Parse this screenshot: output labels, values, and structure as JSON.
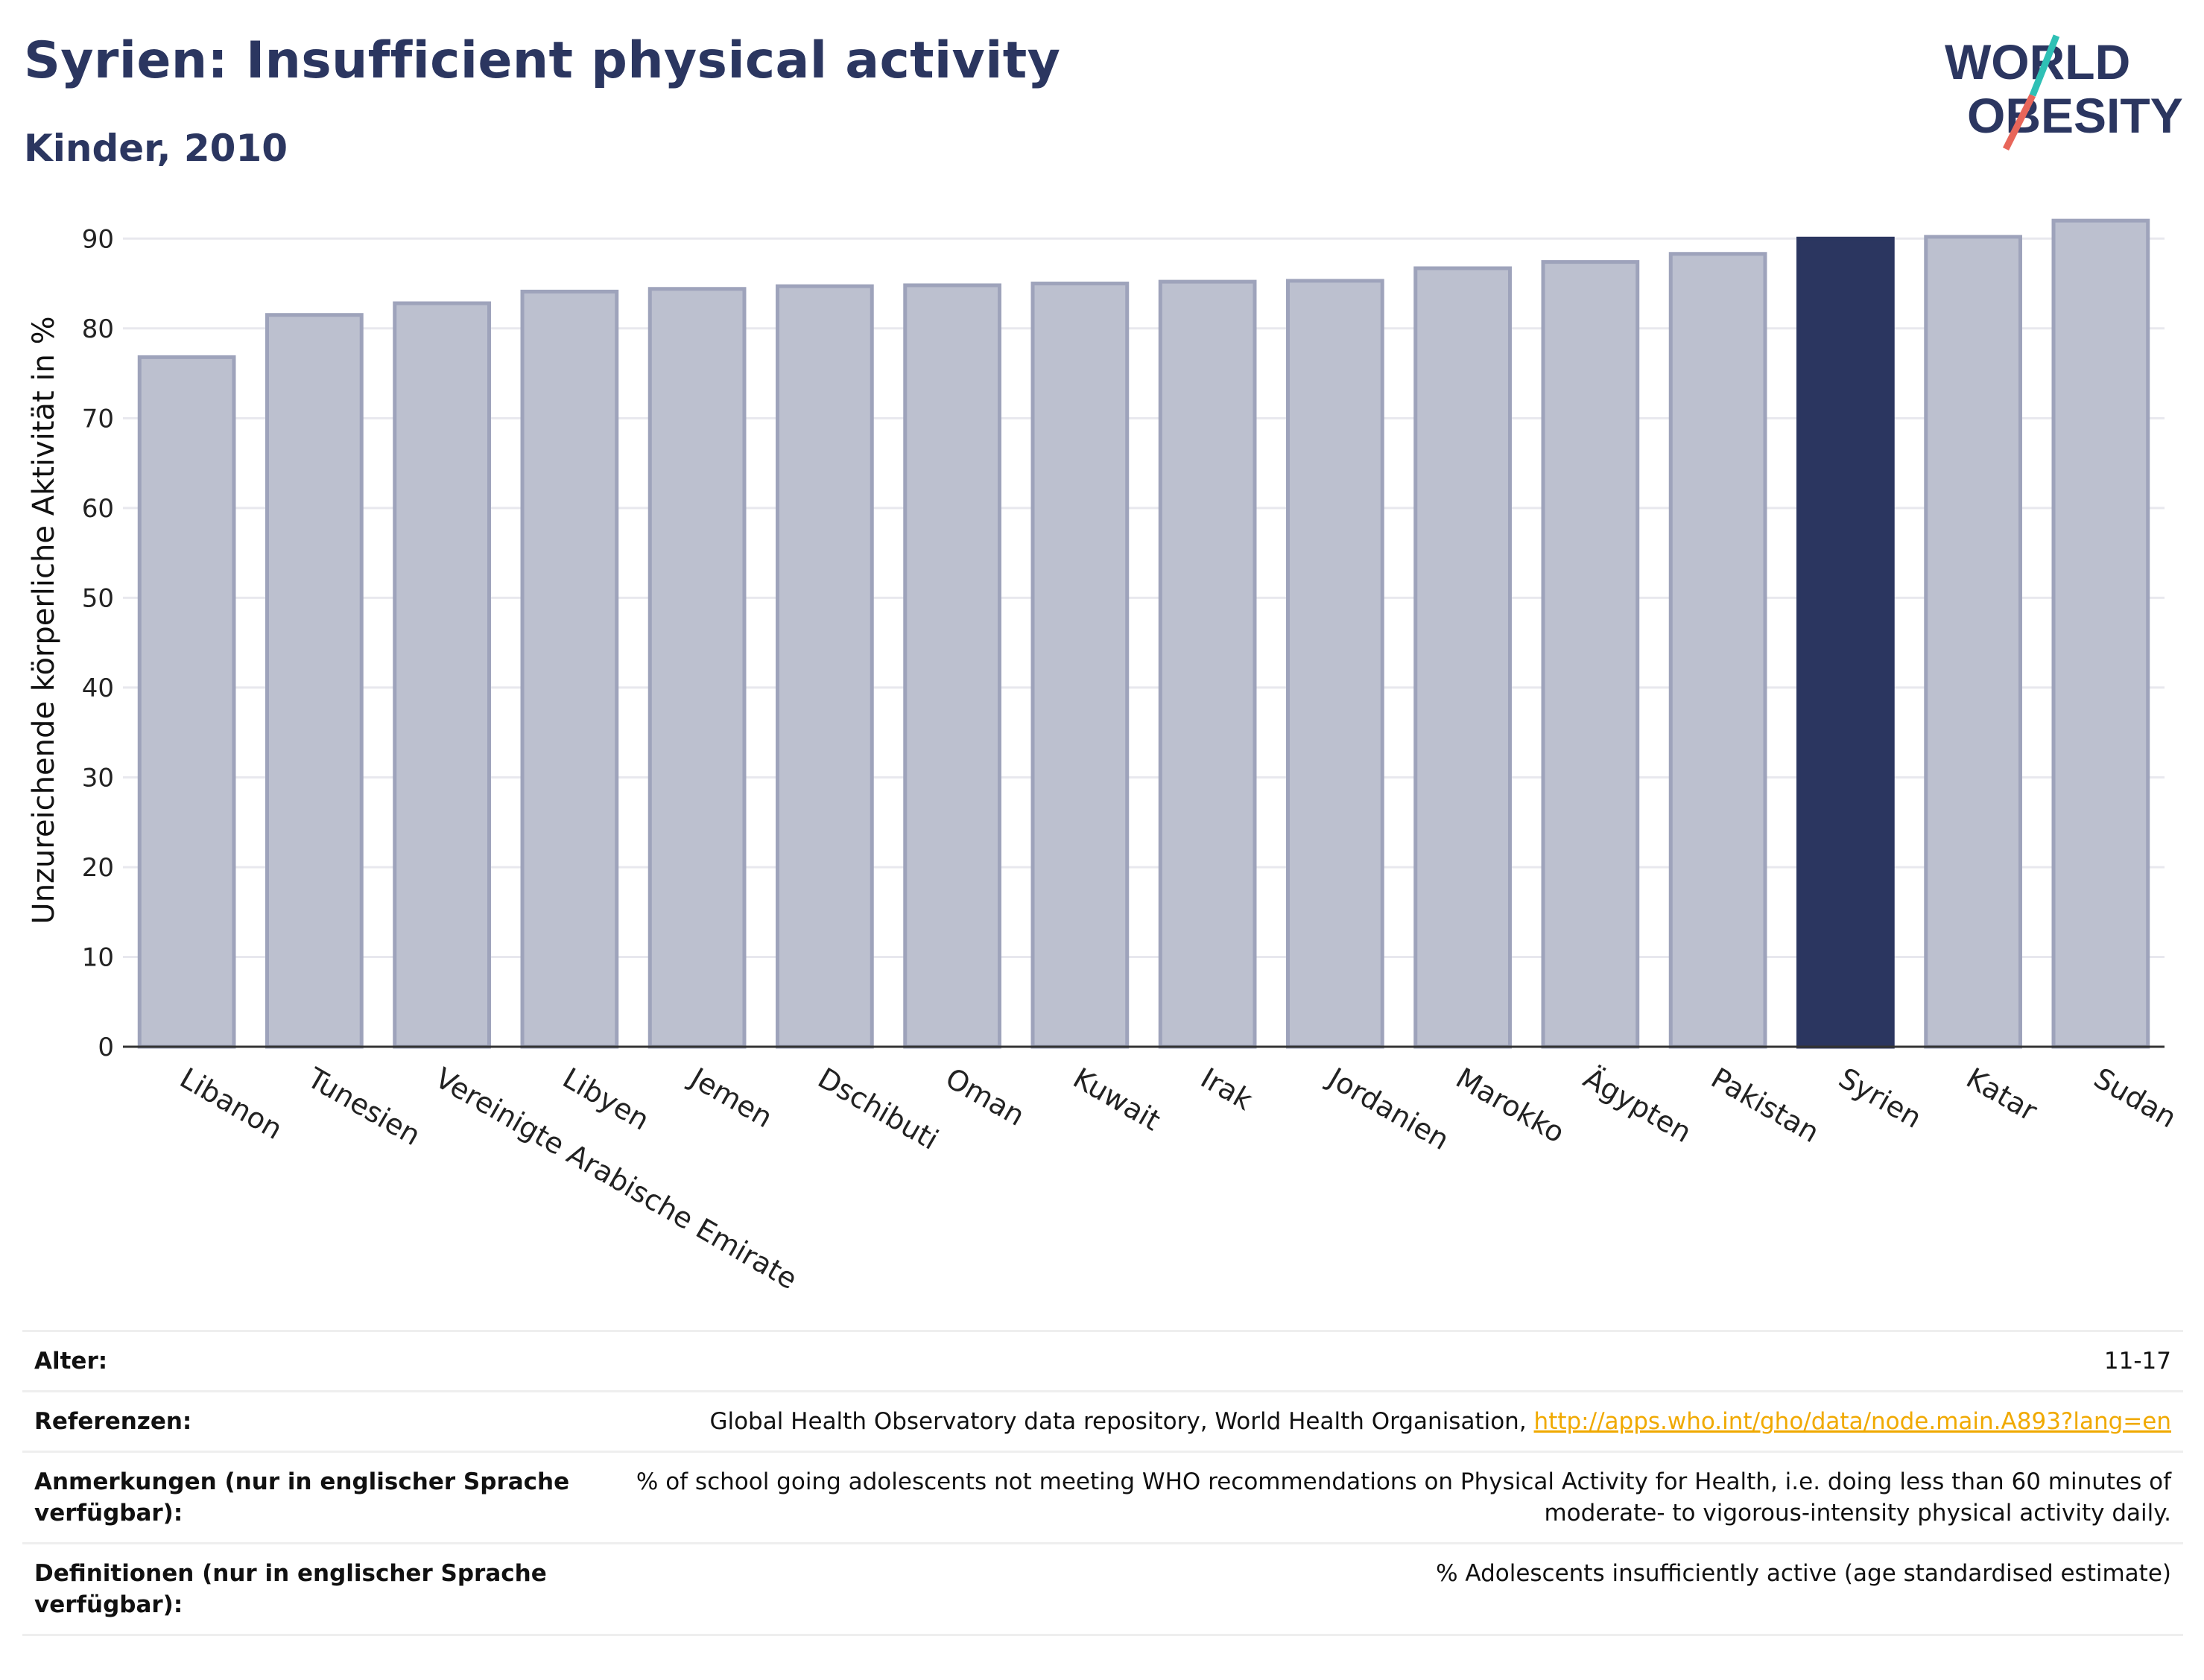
{
  "header": {
    "title": "Syrien: Insufficient physical activity",
    "subtitle": "Kinder, 2010"
  },
  "logo": {
    "line1": "W",
    "o1": "O",
    "line1_rest": "RLD",
    "o2": "O",
    "line2_rest": "BESITY"
  },
  "chart_data": {
    "type": "bar",
    "ylabel": "Unzureichende körperliche Aktivität in %",
    "ylim": [
      0,
      95
    ],
    "yticks": [
      0,
      10,
      20,
      30,
      40,
      50,
      60,
      70,
      80,
      90
    ],
    "grid": true,
    "categories": [
      "Libanon",
      "Tunesien",
      "Vereinigte Arabische Emirate",
      "Libyen",
      "Jemen",
      "Dschibuti",
      "Oman",
      "Kuwait",
      "Irak",
      "Jordanien",
      "Marokko",
      "Ägypten",
      "Pakistan",
      "Syrien",
      "Katar",
      "Sudan"
    ],
    "values": [
      76.8,
      81.5,
      82.8,
      84.1,
      84.4,
      84.7,
      84.8,
      85.0,
      85.2,
      85.3,
      86.7,
      87.4,
      88.3,
      90.0,
      90.2,
      92.0
    ],
    "highlight": "Syrien",
    "colors": {
      "bar": "#bcc0cf",
      "bar_border": "#9ea3bb",
      "highlight": "#2b3660",
      "grid": "#e8e8ee",
      "axis": "#333333"
    }
  },
  "footer": {
    "rows": [
      {
        "label": "Alter:",
        "value": "11-17"
      },
      {
        "label": "Referenzen:",
        "value": "Global Health Observatory data repository, World Health Organisation, ",
        "link": "http://apps.who.int/gho/data/node.main.A893?lang=en"
      },
      {
        "label": "Anmerkungen (nur in englischer Sprache verfügbar):",
        "value": "% of school going adolescents not meeting WHO recommendations on Physical Activity for Health, i.e. doing less than 60 minutes of moderate- to vigorous-intensity physical activity daily."
      },
      {
        "label": "Definitionen (nur in englischer Sprache verfügbar):",
        "value": "% Adolescents insufficiently active (age standardised estimate)"
      }
    ]
  }
}
